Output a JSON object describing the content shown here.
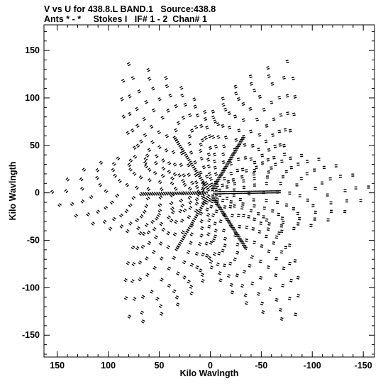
{
  "header": {
    "line1": "V vs U for 438.8.L BAND.1   Source:438.8",
    "line2": "Ants * - *     Stokes I   IF# 1 - 2  Chan# 1"
  },
  "chart_data": {
    "type": "scatter",
    "xlabel": "Kilo Wavlngth",
    "ylabel": "Kilo Wavlngth",
    "xlim": [
      163,
      -161
    ],
    "ylim": [
      -173,
      177
    ],
    "x_reversed": true,
    "xticks": [
      150,
      100,
      50,
      0,
      -50,
      -100,
      -150
    ],
    "yticks": [
      150,
      100,
      50,
      0,
      -50,
      -100,
      -150
    ],
    "grid": false,
    "legend": "none",
    "marker_color": "#000000",
    "pattern": {
      "description_free": true,
      "arm_angles_deg": [
        -1,
        59,
        119,
        179,
        239,
        299
      ],
      "arm_radius_kl": 162,
      "inner_radius_kl": 80,
      "n_arms": 6,
      "n_rings": 12,
      "points_per_ring": 48
    }
  }
}
